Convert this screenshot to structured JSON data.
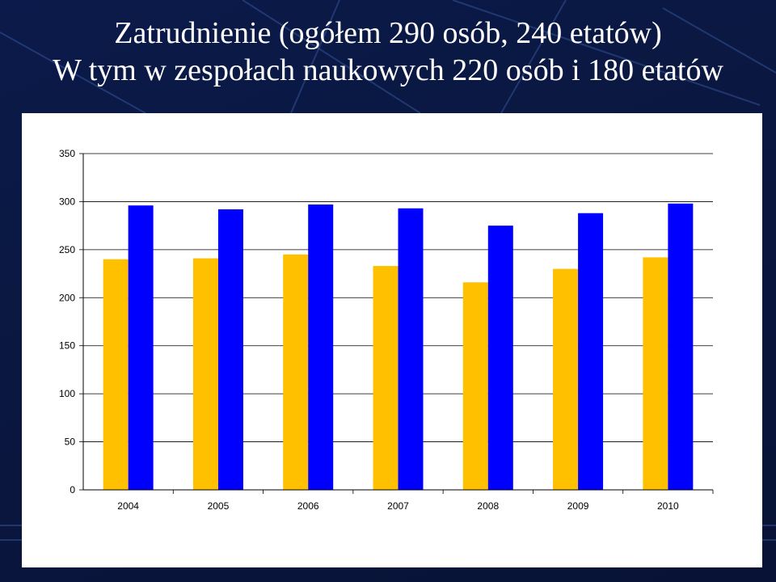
{
  "slide": {
    "title_line1": "Zatrudnienie (ogółem 290 osób, 240 etatów)",
    "title_line2": "W tym w zespołach naukowych 220 osób i 180 etatów"
  },
  "colors": {
    "background": "#0a1740",
    "series1": "#FFC000",
    "series2": "#0000FF",
    "panel": "#FFFFFF"
  },
  "chart_data": {
    "type": "bar",
    "title": "",
    "xlabel": "",
    "ylabel": "",
    "categories": [
      "2004",
      "2005",
      "2006",
      "2007",
      "2008",
      "2009",
      "2010"
    ],
    "series": [
      {
        "values": [
          240,
          241,
          245,
          233,
          216,
          230,
          242
        ],
        "color": "#FFC000"
      },
      {
        "values": [
          296,
          292,
          297,
          293,
          275,
          288,
          298
        ],
        "color": "#0000FF"
      }
    ],
    "ylim": [
      0,
      350
    ],
    "yticks": [
      0,
      50,
      100,
      150,
      200,
      250,
      300,
      350
    ],
    "grid": true,
    "legend": "none"
  }
}
